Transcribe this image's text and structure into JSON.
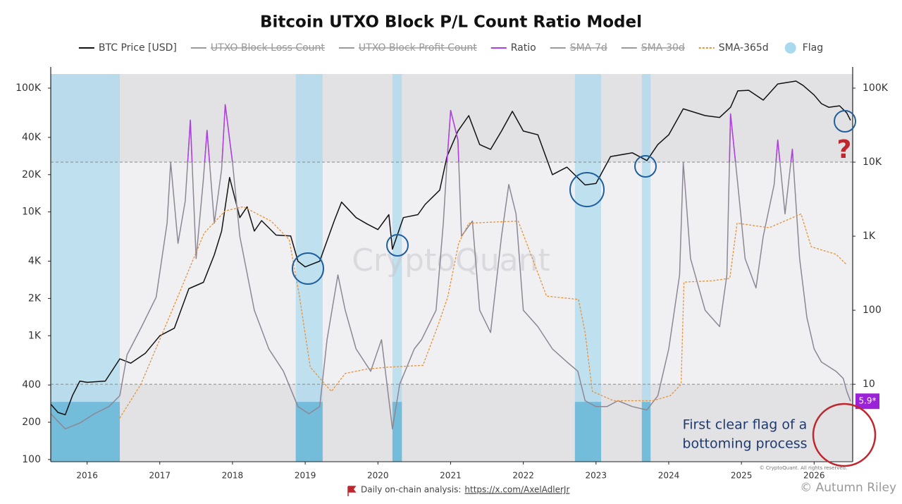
{
  "chart_data": {
    "type": "line",
    "title": "Bitcoin UTXO Block P/L Count Ratio Model",
    "log_y": true,
    "xlim": [
      2015.5,
      2026.53
    ],
    "xticks": [
      2016,
      2017,
      2018,
      2019,
      2020,
      2021,
      2022,
      2023,
      2024,
      2025,
      2026
    ],
    "ylim": [
      96,
      130000
    ],
    "yticks": [
      100,
      200,
      400,
      {
        "value": 1000,
        "label": "1K"
      },
      {
        "value": 2000,
        "label": "2K"
      },
      {
        "value": 4000,
        "label": "4K"
      },
      {
        "value": 10000,
        "label": "10K"
      },
      {
        "value": 20000,
        "label": "20K"
      },
      {
        "value": 40000,
        "label": "40K"
      },
      {
        "value": 100000,
        "label": "100K"
      }
    ],
    "y2lim": [
      0.9,
      155000
    ],
    "y2ticks": [
      10,
      100,
      {
        "value": 1000,
        "label": "1K"
      },
      {
        "value": 10000,
        "label": "10K"
      },
      {
        "value": 100000,
        "label": "100K"
      }
    ],
    "zone": [
      10,
      10000
    ],
    "highlight_above": 10000,
    "series": [
      {
        "name": "BTC Price [USD]",
        "color": "#111111",
        "style": "solid",
        "x": [
          2015.5,
          2015.6,
          2015.7,
          2015.8,
          2015.9,
          2016.0,
          2016.25,
          2016.45,
          2016.6,
          2016.8,
          2017.0,
          2017.2,
          2017.4,
          2017.6,
          2017.75,
          2017.85,
          2017.96,
          2018.1,
          2018.2,
          2018.3,
          2018.4,
          2018.6,
          2018.8,
          2018.9,
          2019.0,
          2019.2,
          2019.4,
          2019.5,
          2019.7,
          2019.85,
          2020.0,
          2020.15,
          2020.2,
          2020.35,
          2020.55,
          2020.65,
          2020.85,
          2020.95,
          2021.1,
          2021.25,
          2021.4,
          2021.55,
          2021.7,
          2021.85,
          2022.0,
          2022.2,
          2022.4,
          2022.6,
          2022.85,
          2023.0,
          2023.2,
          2023.5,
          2023.7,
          2023.85,
          2024.0,
          2024.2,
          2024.5,
          2024.7,
          2024.85,
          2024.95,
          2025.1,
          2025.3,
          2025.5,
          2025.75,
          2025.85,
          2026.0,
          2026.1,
          2026.2,
          2026.35,
          2026.45,
          2026.5
        ],
        "values": [
          280,
          240,
          230,
          330,
          430,
          420,
          430,
          650,
          600,
          720,
          1000,
          1150,
          2400,
          2700,
          4500,
          7000,
          19000,
          9000,
          11000,
          7000,
          8500,
          6500,
          6400,
          4000,
          3600,
          4000,
          8500,
          12000,
          9000,
          8000,
          7200,
          9500,
          5000,
          9000,
          9500,
          11500,
          15000,
          28000,
          45000,
          60000,
          35000,
          32000,
          45000,
          65000,
          45000,
          42000,
          20000,
          23000,
          16500,
          17000,
          28000,
          30000,
          26000,
          35000,
          42000,
          68000,
          60000,
          58000,
          70000,
          95000,
          96000,
          80000,
          108000,
          114000,
          105000,
          88000,
          75000,
          70000,
          72000,
          63000,
          55000
        ]
      },
      {
        "name": "UTXO Block Loss Count",
        "color": "#9a9a9a",
        "style": "solid",
        "hidden": true
      },
      {
        "name": "UTXO Block Profit Count",
        "color": "#9a9a9a",
        "style": "solid",
        "hidden": true
      },
      {
        "name": "Ratio",
        "color": "#b040e0",
        "line_color": "#8d8795",
        "style": "solid",
        "axis": "y2",
        "end_label": "5.9*",
        "x": [
          2015.5,
          2015.7,
          2015.9,
          2016.1,
          2016.3,
          2016.45,
          2016.55,
          2016.75,
          2016.95,
          2017.1,
          2017.15,
          2017.25,
          2017.35,
          2017.42,
          2017.5,
          2017.6,
          2017.65,
          2017.75,
          2017.85,
          2017.9,
          2018.0,
          2018.1,
          2018.3,
          2018.5,
          2018.7,
          2018.9,
          2019.05,
          2019.2,
          2019.3,
          2019.45,
          2019.55,
          2019.7,
          2019.9,
          2020.05,
          2020.2,
          2020.3,
          2020.5,
          2020.6,
          2020.8,
          2020.9,
          2020.95,
          2021.0,
          2021.1,
          2021.15,
          2021.3,
          2021.4,
          2021.55,
          2021.7,
          2021.8,
          2021.9,
          2022.0,
          2022.2,
          2022.4,
          2022.6,
          2022.75,
          2022.85,
          2023.0,
          2023.15,
          2023.3,
          2023.5,
          2023.7,
          2023.85,
          2024.0,
          2024.15,
          2024.2,
          2024.3,
          2024.5,
          2024.7,
          2024.8,
          2024.85,
          2024.95,
          2025.05,
          2025.2,
          2025.3,
          2025.45,
          2025.5,
          2025.6,
          2025.7,
          2025.8,
          2025.9,
          2026.0,
          2026.1,
          2026.3,
          2026.4,
          2026.45,
          2026.5
        ],
        "values": [
          4,
          2.5,
          3,
          4,
          5,
          7,
          25,
          60,
          150,
          1500,
          10000,
          800,
          3000,
          37000,
          500,
          6000,
          27000,
          1500,
          8000,
          60000,
          10000,
          1000,
          100,
          30,
          15,
          5,
          4,
          5,
          40,
          300,
          100,
          30,
          15,
          40,
          2.5,
          10,
          30,
          40,
          100,
          1500,
          10000,
          50000,
          20000,
          1000,
          1600,
          100,
          50,
          1000,
          5000,
          2000,
          100,
          60,
          30,
          20,
          15,
          6,
          5,
          5,
          6,
          5,
          4.5,
          7,
          30,
          300,
          10000,
          500,
          100,
          60,
          300,
          45000,
          5000,
          500,
          200,
          1000,
          5000,
          20000,
          2000,
          15000,
          500,
          80,
          30,
          20,
          15,
          12,
          8,
          5.9
        ]
      },
      {
        "name": "SMA-7d",
        "color": "#9a9a9a",
        "style": "solid",
        "hidden": true
      },
      {
        "name": "SMA-30d",
        "color": "#9a9a9a",
        "style": "solid",
        "hidden": true
      },
      {
        "name": "SMA-365d",
        "color": "#e8923a",
        "style": "dashed",
        "axis": "y2",
        "x": [
          2016.45,
          2016.74,
          2017.17,
          2017.61,
          2017.9,
          2018.15,
          2018.53,
          2018.78,
          2018.92,
          2019.07,
          2019.36,
          2019.55,
          2019.84,
          2020.14,
          2020.62,
          2020.82,
          2020.96,
          2021.11,
          2021.25,
          2021.93,
          2022.17,
          2022.32,
          2022.76,
          2022.85,
          2022.95,
          2023.24,
          2023.78,
          2024.02,
          2024.17,
          2024.21,
          2024.6,
          2024.84,
          2024.94,
          2025.38,
          2025.82,
          2025.96,
          2026.3,
          2026.45
        ],
        "values": [
          3.5,
          10,
          100,
          1100,
          2200,
          2500,
          1600,
          900,
          155,
          17,
          8,
          14,
          16,
          17,
          18,
          60,
          150,
          800,
          1500,
          1600,
          380,
          155,
          140,
          50,
          8,
          6,
          6,
          7,
          10,
          240,
          250,
          270,
          1500,
          1300,
          2000,
          720,
          570,
          410
        ]
      }
    ],
    "flag": {
      "name": "Flag",
      "color": "#a9d9ee",
      "dark_color": "#6bb8d8",
      "ranges": [
        [
          2015.5,
          2016.45
        ],
        [
          2018.87,
          2019.24
        ],
        [
          2020.2,
          2020.33
        ],
        [
          2022.71,
          2023.07
        ],
        [
          2023.63,
          2023.75
        ]
      ]
    },
    "watermark": "CryptoQuant",
    "question": "?",
    "annotation": [
      "First clear flag of a",
      "bottoming process"
    ],
    "copyright": "© CryptoQuant. All rights reserved.",
    "footer": "Daily on-chain analysis:",
    "footer_link": "https://x.com/AxelAdlerJr",
    "credit": "© Autumn Riley"
  }
}
